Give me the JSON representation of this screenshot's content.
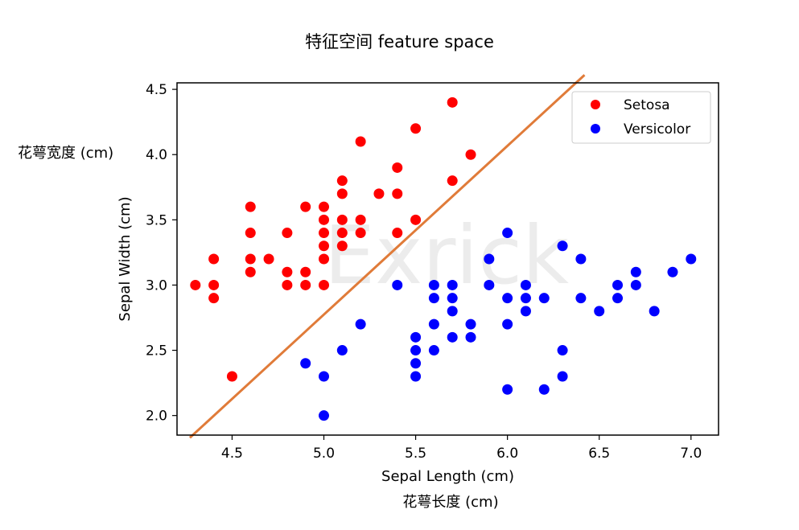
{
  "header": {
    "title": "特征空间 feature space"
  },
  "annotations": {
    "ylabel_cn": "花萼宽度 (cm)",
    "xlabel_cn": "花萼长度 (cm)",
    "watermark": "Exrick"
  },
  "colors": {
    "setosa": "#ff0000",
    "versicolor": "#0000ff",
    "boundary": "#e07b39"
  },
  "chart_data": {
    "type": "scatter",
    "xlabel": "Sepal Length (cm)",
    "ylabel": "Sepal Width (cm)",
    "xlim": [
      4.2,
      7.15
    ],
    "ylim": [
      1.85,
      4.55
    ],
    "xticks": [
      "4.5",
      "5.0",
      "5.5",
      "6.0",
      "6.5",
      "7.0"
    ],
    "yticks": [
      "2.0",
      "2.5",
      "3.0",
      "3.5",
      "4.0",
      "4.5"
    ],
    "legend": {
      "position": "top-right",
      "entries": [
        "Setosa",
        "Versicolor"
      ]
    },
    "grid": false,
    "series": [
      {
        "name": "Setosa",
        "color": "#ff0000",
        "points": [
          [
            4.3,
            3.0
          ],
          [
            4.4,
            3.2
          ],
          [
            4.4,
            3.0
          ],
          [
            4.4,
            2.9
          ],
          [
            4.5,
            2.3
          ],
          [
            4.6,
            3.6
          ],
          [
            4.6,
            3.4
          ],
          [
            4.6,
            3.2
          ],
          [
            4.6,
            3.1
          ],
          [
            4.7,
            3.2
          ],
          [
            4.8,
            3.4
          ],
          [
            4.8,
            3.1
          ],
          [
            4.8,
            3.0
          ],
          [
            4.9,
            3.6
          ],
          [
            4.9,
            3.1
          ],
          [
            4.9,
            3.0
          ],
          [
            5.0,
            3.6
          ],
          [
            5.0,
            3.5
          ],
          [
            5.0,
            3.4
          ],
          [
            5.0,
            3.3
          ],
          [
            5.0,
            3.2
          ],
          [
            5.0,
            3.0
          ],
          [
            5.1,
            3.8
          ],
          [
            5.1,
            3.7
          ],
          [
            5.1,
            3.5
          ],
          [
            5.1,
            3.4
          ],
          [
            5.1,
            3.3
          ],
          [
            5.2,
            4.1
          ],
          [
            5.2,
            3.5
          ],
          [
            5.2,
            3.4
          ],
          [
            5.3,
            3.7
          ],
          [
            5.4,
            3.9
          ],
          [
            5.4,
            3.7
          ],
          [
            5.4,
            3.4
          ],
          [
            5.5,
            4.2
          ],
          [
            5.5,
            3.5
          ],
          [
            5.7,
            4.4
          ],
          [
            5.7,
            3.8
          ],
          [
            5.8,
            4.0
          ]
        ]
      },
      {
        "name": "Versicolor",
        "color": "#0000ff",
        "points": [
          [
            4.9,
            2.4
          ],
          [
            5.0,
            2.3
          ],
          [
            5.0,
            2.0
          ],
          [
            5.1,
            2.5
          ],
          [
            5.2,
            2.7
          ],
          [
            5.4,
            3.0
          ],
          [
            5.5,
            2.6
          ],
          [
            5.5,
            2.5
          ],
          [
            5.5,
            2.4
          ],
          [
            5.5,
            2.3
          ],
          [
            5.6,
            3.0
          ],
          [
            5.6,
            2.9
          ],
          [
            5.6,
            2.7
          ],
          [
            5.6,
            2.5
          ],
          [
            5.7,
            3.0
          ],
          [
            5.7,
            2.9
          ],
          [
            5.7,
            2.8
          ],
          [
            5.7,
            2.6
          ],
          [
            5.8,
            2.7
          ],
          [
            5.8,
            2.6
          ],
          [
            5.9,
            3.2
          ],
          [
            5.9,
            3.0
          ],
          [
            6.0,
            3.4
          ],
          [
            6.0,
            2.9
          ],
          [
            6.0,
            2.7
          ],
          [
            6.0,
            2.2
          ],
          [
            6.1,
            3.0
          ],
          [
            6.1,
            2.9
          ],
          [
            6.1,
            2.8
          ],
          [
            6.2,
            2.9
          ],
          [
            6.2,
            2.2
          ],
          [
            6.3,
            3.3
          ],
          [
            6.3,
            2.5
          ],
          [
            6.3,
            2.3
          ],
          [
            6.4,
            3.2
          ],
          [
            6.4,
            2.9
          ],
          [
            6.5,
            2.8
          ],
          [
            6.6,
            3.0
          ],
          [
            6.6,
            2.9
          ],
          [
            6.7,
            3.1
          ],
          [
            6.7,
            3.0
          ],
          [
            6.8,
            2.8
          ],
          [
            6.9,
            3.1
          ],
          [
            7.0,
            3.2
          ]
        ]
      }
    ],
    "boundary_line": {
      "x": [
        4.27,
        6.42
      ],
      "y": [
        1.83,
        4.61
      ]
    }
  }
}
